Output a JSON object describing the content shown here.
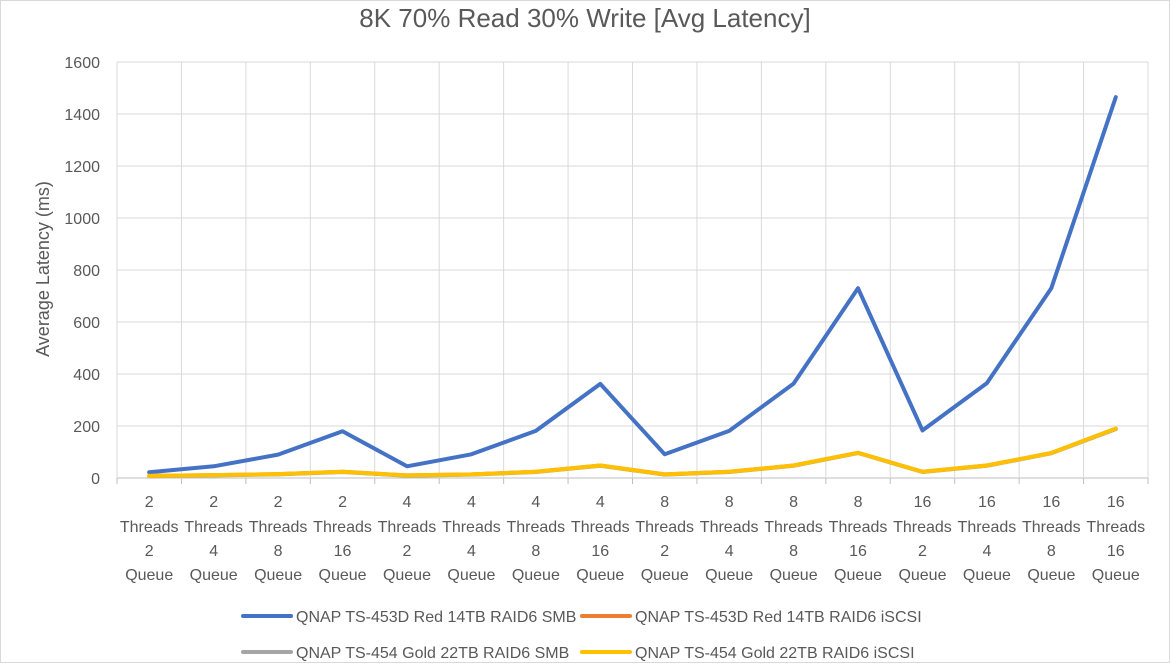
{
  "chart_data": {
    "type": "line",
    "title": "8K 70% Read 30% Write [Avg Latency]",
    "ylabel": "Average Latency (ms)",
    "xlabel": "",
    "ylim": [
      0,
      1600
    ],
    "yticks": [
      0,
      200,
      400,
      600,
      800,
      1000,
      1200,
      1400,
      1600
    ],
    "grid": true,
    "legend_position": "bottom",
    "categories": [
      [
        "2",
        "Threads",
        "2",
        "Queue"
      ],
      [
        "2",
        "Threads",
        "4",
        "Queue"
      ],
      [
        "2",
        "Threads",
        "8",
        "Queue"
      ],
      [
        "2",
        "Threads",
        "16",
        "Queue"
      ],
      [
        "4",
        "Threads",
        "2",
        "Queue"
      ],
      [
        "4",
        "Threads",
        "4",
        "Queue"
      ],
      [
        "4",
        "Threads",
        "8",
        "Queue"
      ],
      [
        "4",
        "Threads",
        "16",
        "Queue"
      ],
      [
        "8",
        "Threads",
        "2",
        "Queue"
      ],
      [
        "8",
        "Threads",
        "4",
        "Queue"
      ],
      [
        "8",
        "Threads",
        "8",
        "Queue"
      ],
      [
        "8",
        "Threads",
        "16",
        "Queue"
      ],
      [
        "16",
        "Threads",
        "2",
        "Queue"
      ],
      [
        "16",
        "Threads",
        "4",
        "Queue"
      ],
      [
        "16",
        "Threads",
        "8",
        "Queue"
      ],
      [
        "16",
        "Threads",
        "16",
        "Queue"
      ]
    ],
    "series": [
      {
        "name": "QNAP TS-453D Red 14TB RAID6 SMB",
        "color": "#4472C4",
        "values": [
          22,
          45,
          90,
          180,
          45,
          91,
          181,
          362,
          91,
          181,
          363,
          730,
          183,
          365,
          730,
          1465
        ]
      },
      {
        "name": "QNAP TS-453D Red 14TB RAID6 iSCSI",
        "color": "#ED7D31",
        "values": [
          8,
          11,
          15,
          24,
          10,
          14,
          24,
          48,
          14,
          24,
          48,
          97,
          24,
          48,
          96,
          190
        ]
      },
      {
        "name": "QNAP TS-454 Gold 22TB RAID6 SMB",
        "color": "#A5A5A5",
        "values": [
          7,
          10,
          14,
          23,
          9,
          13,
          23,
          47,
          13,
          23,
          47,
          96,
          23,
          47,
          95,
          188
        ]
      },
      {
        "name": "QNAP TS-454 Gold 22TB RAID6 iSCSI",
        "color": "#FFC000",
        "values": [
          8,
          11,
          15,
          24,
          10,
          14,
          24,
          48,
          14,
          24,
          48,
          97,
          24,
          48,
          96,
          190
        ]
      }
    ]
  }
}
